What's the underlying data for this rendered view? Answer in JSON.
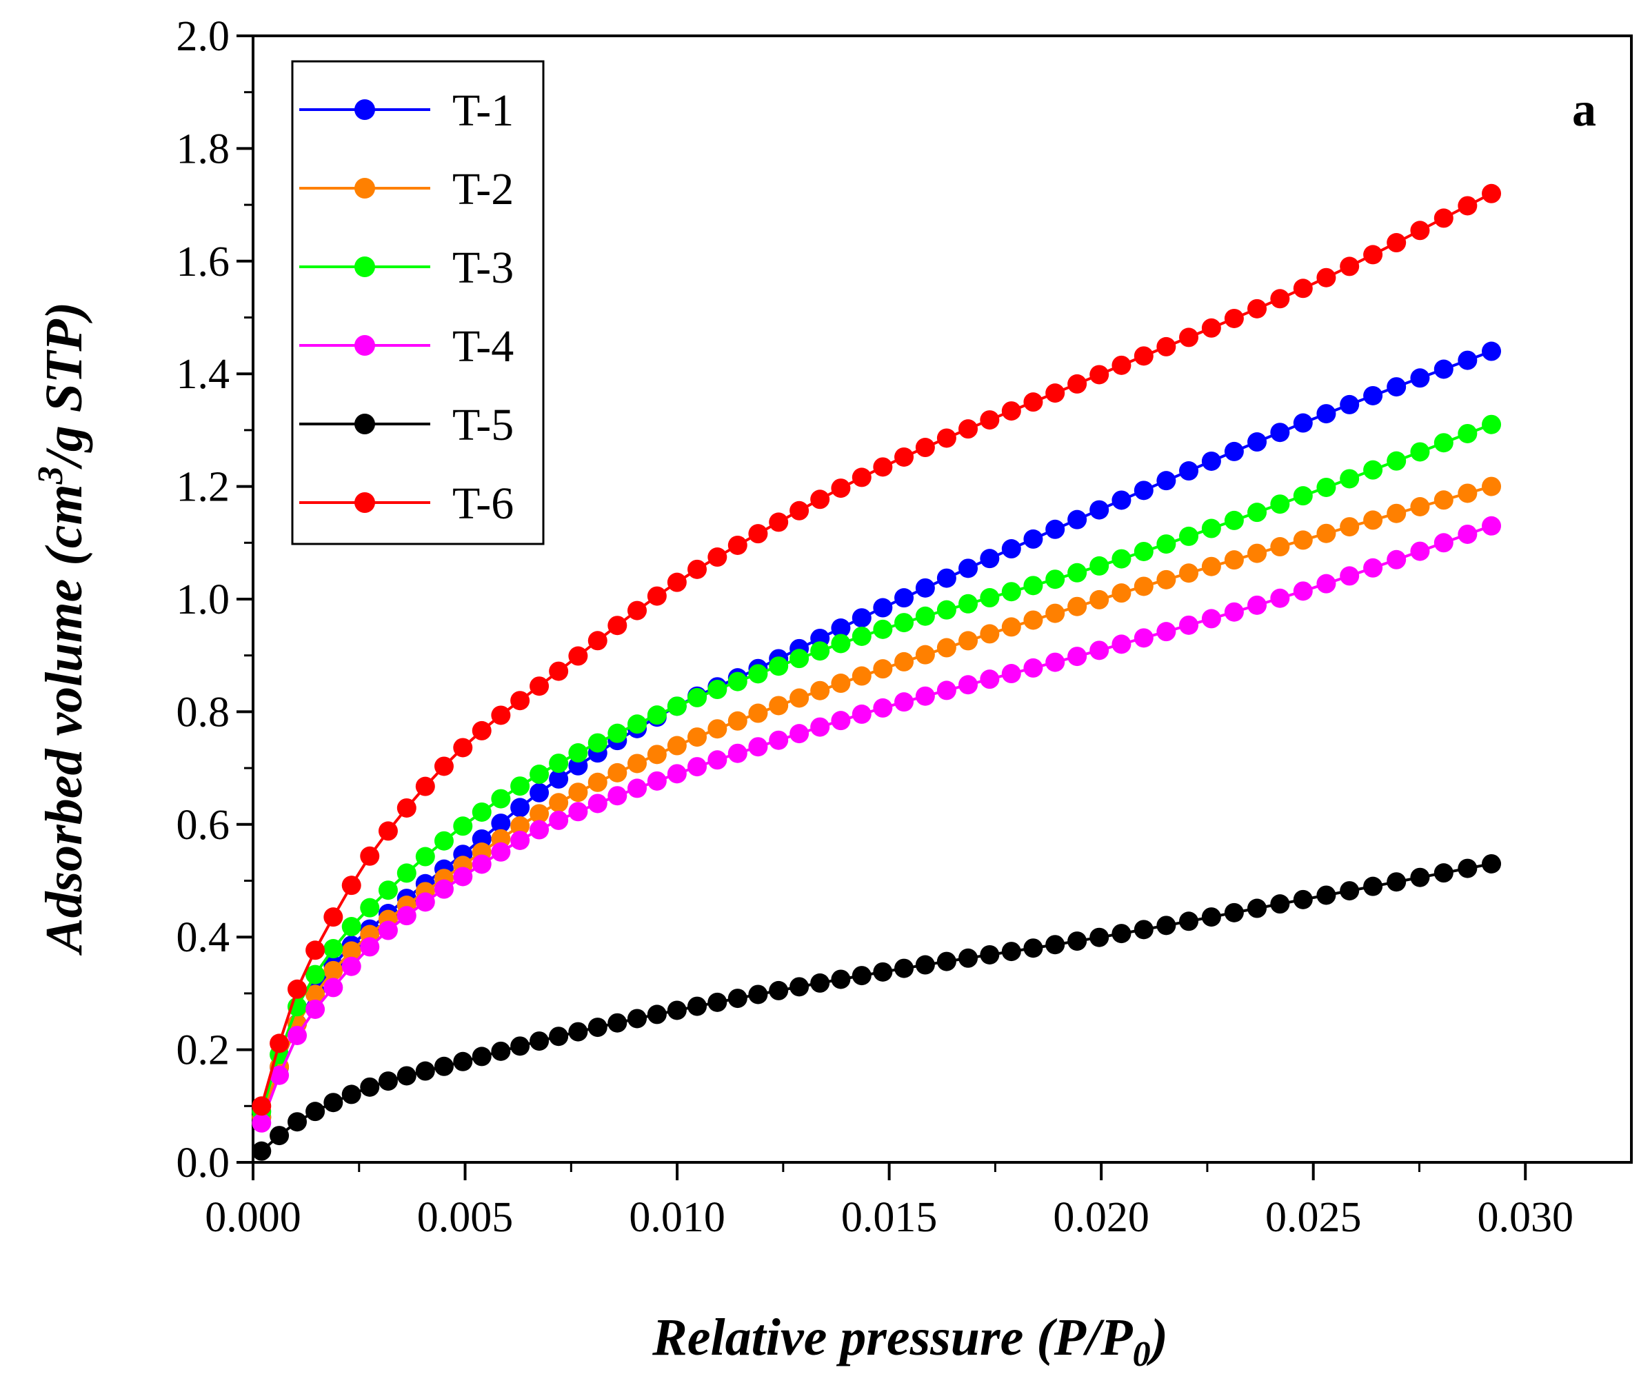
{
  "chart_data": {
    "type": "scatter",
    "panel_label": "a",
    "xlabel": {
      "main": "Relative pressure (P/P",
      "sub": "0",
      "end": ")"
    },
    "ylabel": {
      "main": "Adsorbed volume (cm",
      "sup": "3",
      "end": "/g STP)"
    },
    "xlim": [
      0,
      0.0325
    ],
    "ylim": [
      0,
      2.0
    ],
    "xticks": [
      0.0,
      0.005,
      0.01,
      0.015,
      0.02,
      0.025,
      0.03
    ],
    "xtick_labels": [
      "0.000",
      "0.005",
      "0.010",
      "0.015",
      "0.020",
      "0.025",
      "0.030"
    ],
    "yticks": [
      0.0,
      0.2,
      0.4,
      0.6,
      0.8,
      1.0,
      1.2,
      1.4,
      1.6,
      1.8,
      2.0
    ],
    "ytick_labels": [
      "0.0",
      "0.2",
      "0.4",
      "0.6",
      "0.8",
      "1.0",
      "1.2",
      "1.4",
      "1.6",
      "1.8",
      "2.0"
    ],
    "legend_position": "top-left",
    "grid": false,
    "points_per_series": 60,
    "x_range": [
      0.0002,
      0.0292
    ],
    "series": [
      {
        "name": "T-1",
        "color": "#0000ff",
        "x": [
          0.0002,
          0.001,
          0.002,
          0.003,
          0.005,
          0.007,
          0.01,
          0.012,
          0.015,
          0.02,
          0.025,
          0.0292
        ],
        "y": [
          0.08,
          0.24,
          0.36,
          0.43,
          0.55,
          0.67,
          0.81,
          0.88,
          0.99,
          1.16,
          1.32,
          1.44
        ]
      },
      {
        "name": "T-2",
        "color": "#ff8000",
        "x": [
          0.0002,
          0.001,
          0.002,
          0.003,
          0.005,
          0.007,
          0.01,
          0.012,
          0.015,
          0.02,
          0.025,
          0.0292
        ],
        "y": [
          0.08,
          0.24,
          0.35,
          0.42,
          0.53,
          0.63,
          0.74,
          0.8,
          0.88,
          1.0,
          1.11,
          1.2
        ]
      },
      {
        "name": "T-3",
        "color": "#00ff00",
        "x": [
          0.0002,
          0.001,
          0.002,
          0.003,
          0.005,
          0.007,
          0.01,
          0.012,
          0.015,
          0.02,
          0.025,
          0.0292
        ],
        "y": [
          0.09,
          0.27,
          0.39,
          0.47,
          0.6,
          0.7,
          0.81,
          0.87,
          0.95,
          1.06,
          1.19,
          1.31
        ]
      },
      {
        "name": "T-4",
        "color": "#ff00ff",
        "x": [
          0.0002,
          0.001,
          0.002,
          0.003,
          0.005,
          0.007,
          0.01,
          0.012,
          0.015,
          0.02,
          0.025,
          0.0292
        ],
        "y": [
          0.07,
          0.22,
          0.32,
          0.4,
          0.51,
          0.6,
          0.69,
          0.74,
          0.81,
          0.91,
          1.02,
          1.13
        ]
      },
      {
        "name": "T-5",
        "color": "#000000",
        "x": [
          0.0002,
          0.001,
          0.002,
          0.003,
          0.005,
          0.007,
          0.01,
          0.015,
          0.02,
          0.025,
          0.0292
        ],
        "y": [
          0.02,
          0.07,
          0.11,
          0.14,
          0.18,
          0.22,
          0.27,
          0.34,
          0.4,
          0.47,
          0.53
        ]
      },
      {
        "name": "T-6",
        "color": "#ff0000",
        "x": [
          0.0002,
          0.001,
          0.002,
          0.003,
          0.005,
          0.007,
          0.01,
          0.012,
          0.015,
          0.02,
          0.025,
          0.0292
        ],
        "y": [
          0.1,
          0.3,
          0.45,
          0.57,
          0.74,
          0.86,
          1.03,
          1.12,
          1.24,
          1.4,
          1.56,
          1.72
        ]
      }
    ]
  }
}
